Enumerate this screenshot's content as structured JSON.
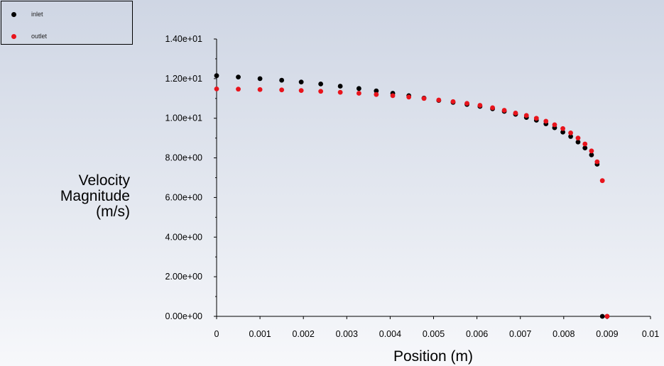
{
  "chart_data": {
    "type": "scatter",
    "xlabel": "Position (m)",
    "ylabel": [
      "Velocity",
      "Magnitude",
      "(m/s)"
    ],
    "xlim": [
      0,
      0.01
    ],
    "ylim": [
      0,
      14
    ],
    "x_ticks": [
      0,
      0.001,
      0.002,
      0.003,
      0.004,
      0.005,
      0.006,
      0.007,
      0.008,
      0.009,
      0.01
    ],
    "x_tick_labels": [
      "0",
      "0.001",
      "0.002",
      "0.003",
      "0.004",
      "0.005",
      "0.006",
      "0.007",
      "0.008",
      "0.009",
      "0.01"
    ],
    "y_ticks": [
      0,
      2,
      4,
      6,
      8,
      10,
      12,
      14
    ],
    "y_tick_labels": [
      "0.00e+00",
      "2.00e+00",
      "4.00e+00",
      "6.00e+00",
      "8.00e+00",
      "1.00e+01",
      "1.20e+01",
      "1.40e+01"
    ],
    "legend_position": "top-left",
    "grid": false,
    "series": [
      {
        "name": "inlet",
        "color": "#000000",
        "x": [
          0,
          0.0005,
          0.001,
          0.0015,
          0.00195,
          0.0024,
          0.00285,
          0.00328,
          0.00368,
          0.00406,
          0.00443,
          0.00478,
          0.00512,
          0.00545,
          0.00577,
          0.00607,
          0.00636,
          0.00663,
          0.00689,
          0.00714,
          0.00737,
          0.00759,
          0.00779,
          0.00798,
          0.00816,
          0.00833,
          0.00849,
          0.00864,
          0.00877,
          0.00889,
          0.009
        ],
        "y": [
          12.15,
          12.08,
          12.0,
          11.92,
          11.83,
          11.73,
          11.62,
          11.5,
          11.38,
          11.26,
          11.14,
          11.02,
          10.9,
          10.8,
          10.7,
          10.6,
          10.48,
          10.35,
          10.2,
          10.04,
          9.9,
          9.72,
          9.52,
          9.3,
          9.08,
          8.8,
          8.5,
          8.15,
          7.68,
          0.0,
          0.0
        ]
      },
      {
        "name": "outlet",
        "color": "#e8141c",
        "x": [
          0,
          0.0005,
          0.001,
          0.0015,
          0.00195,
          0.0024,
          0.00285,
          0.00328,
          0.00368,
          0.00406,
          0.00443,
          0.00478,
          0.00512,
          0.00545,
          0.00577,
          0.00607,
          0.00636,
          0.00663,
          0.00689,
          0.00714,
          0.00737,
          0.00759,
          0.00779,
          0.00798,
          0.00816,
          0.00833,
          0.00849,
          0.00864,
          0.00877,
          0.00889,
          0.009
        ],
        "y": [
          11.48,
          11.47,
          11.45,
          11.43,
          11.4,
          11.36,
          11.31,
          11.26,
          11.2,
          11.14,
          11.07,
          11.0,
          10.92,
          10.84,
          10.75,
          10.65,
          10.53,
          10.4,
          10.26,
          10.14,
          10.0,
          9.85,
          9.67,
          9.48,
          9.26,
          9.0,
          8.7,
          8.35,
          7.8,
          6.85,
          0.0
        ]
      }
    ]
  }
}
